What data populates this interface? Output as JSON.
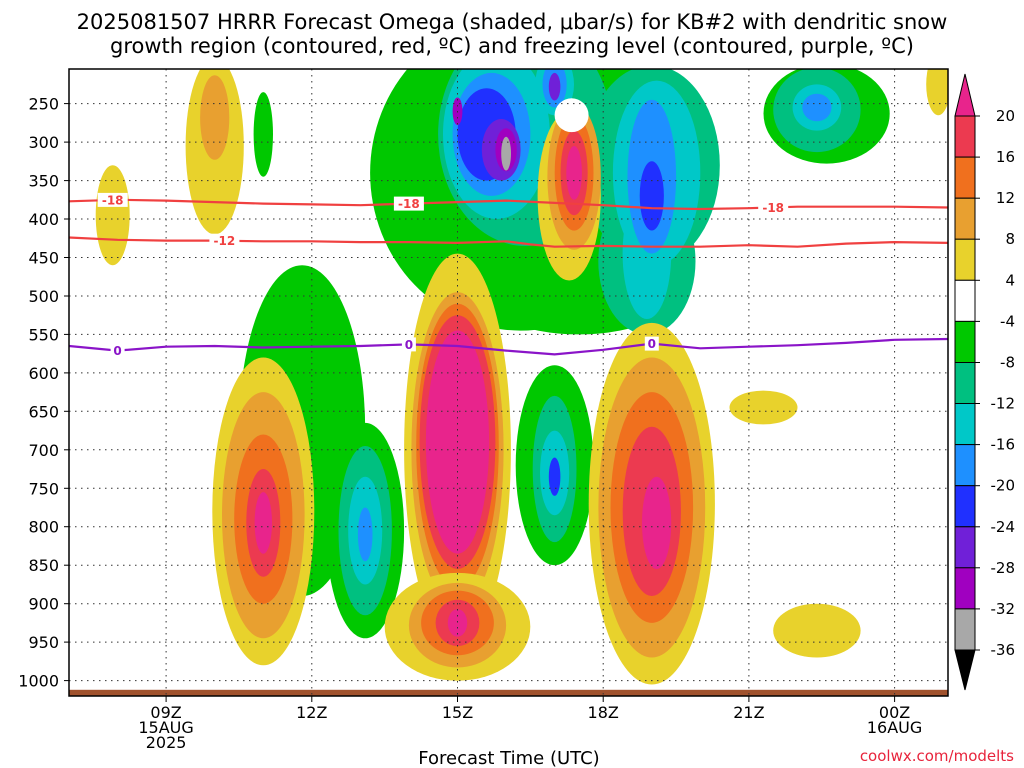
{
  "chart_data": {
    "type": "contour",
    "title_line1": "2025081507 HRRR Forecast Omega (shaded, μbar/s) for KB#2 with dendritic snow",
    "title_line2": "growth region (contoured, red, ºC) and freezing level (contoured, purple, ºC)",
    "xlabel": "Forecast Time (UTC)",
    "credit": "coolwx.com/modelts",
    "x_range_hours": [
      7.0,
      25.1
    ],
    "y_range_hpa": [
      205,
      1020
    ],
    "x_ticks": [
      {
        "hour": 9,
        "lines": [
          "09Z",
          "15AUG",
          "2025"
        ]
      },
      {
        "hour": 12,
        "lines": [
          "12Z"
        ]
      },
      {
        "hour": 15,
        "lines": [
          "15Z"
        ]
      },
      {
        "hour": 18,
        "lines": [
          "18Z"
        ]
      },
      {
        "hour": 21,
        "lines": [
          "21Z"
        ]
      },
      {
        "hour": 24,
        "lines": [
          "00Z",
          "16AUG"
        ]
      }
    ],
    "y_ticks": [
      250,
      300,
      350,
      400,
      450,
      500,
      550,
      600,
      650,
      700,
      750,
      800,
      850,
      900,
      950,
      1000
    ],
    "colorbar": {
      "labels": [
        "20",
        "16",
        "12",
        "8",
        "4",
        "-4",
        "-8",
        "-12",
        "-16",
        "-20",
        "-24",
        "-28",
        "-32",
        "-36"
      ],
      "colors": [
        "#ec3a50",
        "#f0701e",
        "#e8a030",
        "#e8d22c",
        "#ffffff",
        "#00c800",
        "#00c080",
        "#00c8c8",
        "#1e90ff",
        "#2030ff",
        "#7020d8",
        "#a000c0",
        "#a8a8a8"
      ],
      "top_color": "#e8248c",
      "bottom_color": "#000000"
    },
    "shading_colors": {
      "pos4": "#e8d22c",
      "pos8": "#e8a030",
      "pos12": "#f0701e",
      "pos16": "#ec3a50",
      "pos20": "#e8248c",
      "neg4": "#00c800",
      "neg8": "#00c080",
      "neg12": "#00c8c8",
      "neg16": "#1e90ff",
      "neg20": "#2030ff",
      "neg24": "#7020d8",
      "neg28": "#a000c0",
      "neg32": "#a8a8a8"
    },
    "ground_color": "#a0522d",
    "contours": [
      {
        "name": "-18",
        "color": "#f04040",
        "label_hours": [
          7.9,
          14.0,
          21.5
        ],
        "points": [
          [
            7.0,
            377
          ],
          [
            8.0,
            375
          ],
          [
            9.0,
            376
          ],
          [
            10.0,
            378
          ],
          [
            11.0,
            380
          ],
          [
            12.0,
            381
          ],
          [
            13.0,
            382
          ],
          [
            14.0,
            380
          ],
          [
            15.0,
            378
          ],
          [
            16.0,
            376
          ],
          [
            17.0,
            379
          ],
          [
            18.0,
            382
          ],
          [
            19.0,
            386
          ],
          [
            20.0,
            387
          ],
          [
            21.0,
            386
          ],
          [
            22.0,
            384
          ],
          [
            23.0,
            384
          ],
          [
            24.0,
            384
          ],
          [
            25.1,
            385
          ]
        ]
      },
      {
        "name": "-12",
        "color": "#f04040",
        "label_hours": [
          10.2
        ],
        "points": [
          [
            7.0,
            424
          ],
          [
            8.0,
            427
          ],
          [
            9.0,
            428
          ],
          [
            10.0,
            428
          ],
          [
            11.0,
            429
          ],
          [
            12.0,
            429
          ],
          [
            13.0,
            430
          ],
          [
            14.0,
            430
          ],
          [
            15.0,
            431
          ],
          [
            16.0,
            429
          ],
          [
            16.5,
            433
          ],
          [
            17.0,
            436
          ],
          [
            18.0,
            435
          ],
          [
            19.0,
            436
          ],
          [
            20.0,
            436
          ],
          [
            21.0,
            434
          ],
          [
            22.0,
            436
          ],
          [
            23.0,
            432
          ],
          [
            24.0,
            430
          ],
          [
            25.1,
            431
          ]
        ]
      },
      {
        "name": "0",
        "color": "#8a14c8",
        "label_hours": [
          8.0,
          14.0,
          19.0
        ],
        "points": [
          [
            7.0,
            565
          ],
          [
            8.0,
            571
          ],
          [
            9.0,
            566
          ],
          [
            10.0,
            565
          ],
          [
            11.0,
            567
          ],
          [
            12.0,
            566
          ],
          [
            13.0,
            565
          ],
          [
            14.0,
            563
          ],
          [
            15.0,
            565
          ],
          [
            16.0,
            571
          ],
          [
            17.0,
            576
          ],
          [
            18.0,
            570
          ],
          [
            19.0,
            562
          ],
          [
            20.0,
            568
          ],
          [
            21.0,
            566
          ],
          [
            22.0,
            564
          ],
          [
            23.0,
            561
          ],
          [
            24.0,
            557
          ],
          [
            25.1,
            556
          ]
        ]
      }
    ]
  }
}
